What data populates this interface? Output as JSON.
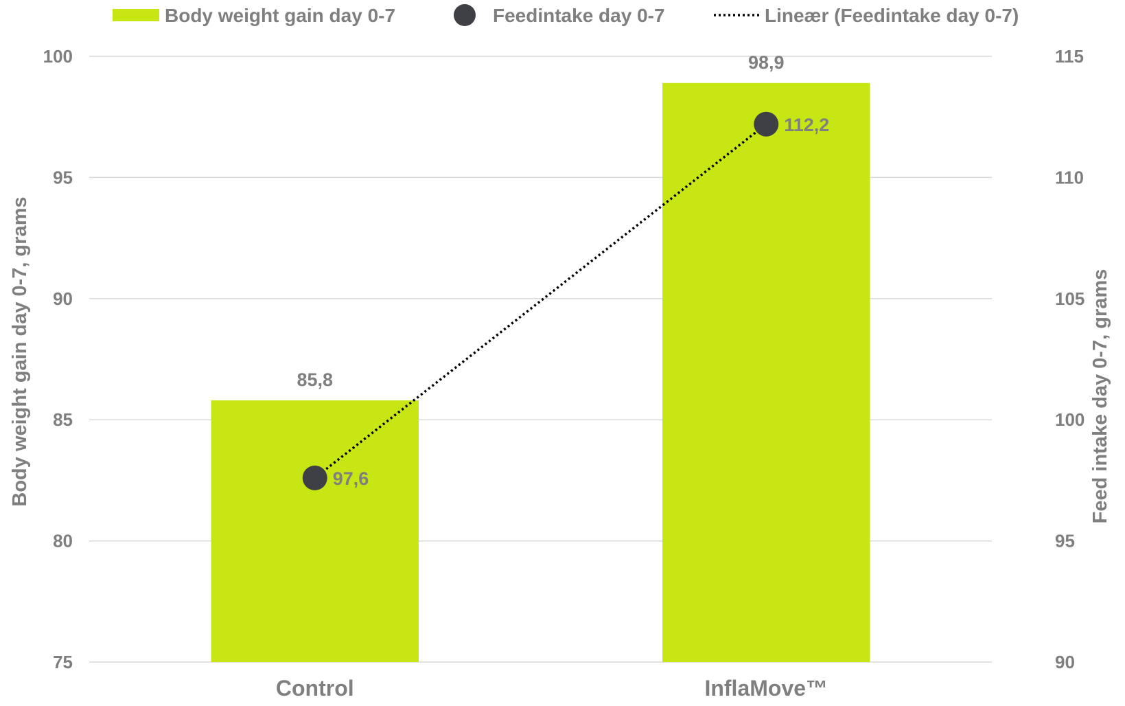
{
  "chart_data": {
    "type": "bar",
    "categories": [
      "Control",
      "InflaMove™"
    ],
    "series": [
      {
        "name": "Body weight gain day 0-7",
        "kind": "bar",
        "axis": "left",
        "values": [
          85.8,
          98.9
        ],
        "labels": [
          "85,8",
          "98,9"
        ],
        "color": "#c8e614"
      },
      {
        "name": "Feedintake day 0-7",
        "kind": "marker",
        "axis": "right",
        "values": [
          97.6,
          112.2
        ],
        "labels": [
          "97,6",
          "112,2"
        ],
        "color": "#3f3f46"
      },
      {
        "name": "Lineær (Feedintake day 0-7)",
        "kind": "trendline",
        "axis": "right",
        "values": [
          97.6,
          112.2
        ],
        "style": "dotted",
        "color": "#000000"
      }
    ],
    "left_axis": {
      "label": "Body weight gain day 0-7, grams",
      "range": [
        75,
        100
      ],
      "ticks": [
        "75",
        "80",
        "85",
        "90",
        "95",
        "100"
      ]
    },
    "right_axis": {
      "label": "Feed intake day 0-7, grams",
      "range": [
        90,
        115
      ],
      "ticks": [
        "90",
        "95",
        "100",
        "105",
        "110",
        "115"
      ]
    },
    "grid": true,
    "legend_position": "top"
  }
}
